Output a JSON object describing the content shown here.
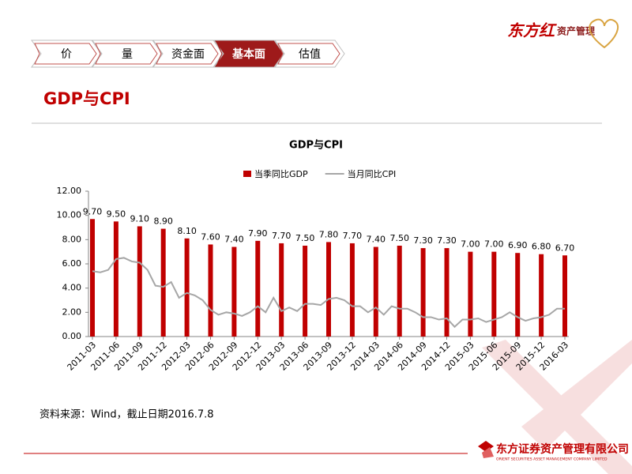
{
  "nav": {
    "tabs": [
      "价",
      "量",
      "资金面",
      "基本面",
      "估值"
    ],
    "active": 3
  },
  "logo": {
    "brand": "东方红",
    "name": "资产管理"
  },
  "header": {
    "title": "GDP与CPI"
  },
  "chart_data": {
    "type": "bar_line",
    "title": "GDP与CPI",
    "categories": [
      "2011-03",
      null,
      null,
      "2011-06",
      null,
      null,
      "2011-09",
      null,
      null,
      "2011-12",
      null,
      null,
      "2012-03",
      null,
      null,
      "2012-06",
      null,
      null,
      "2012-09",
      null,
      null,
      "2012-12",
      null,
      null,
      "2013-03",
      null,
      null,
      "2013-06",
      null,
      null,
      "2013-09",
      null,
      null,
      "2013-12",
      null,
      null,
      "2014-03",
      null,
      null,
      "2014-06",
      null,
      null,
      "2014-09",
      null,
      null,
      "2014-12",
      null,
      null,
      "2015-03",
      null,
      null,
      "2015-06",
      null,
      null,
      "2015-09",
      null,
      null,
      "2015-12",
      null,
      null,
      "2016-03"
    ],
    "series": [
      {
        "name": "当季同比GDP",
        "color": "#c00000",
        "type": "bar",
        "values": [
          9.7,
          null,
          null,
          9.5,
          null,
          null,
          9.1,
          null,
          null,
          8.9,
          null,
          null,
          8.1,
          null,
          null,
          7.6,
          null,
          null,
          7.4,
          null,
          null,
          7.9,
          null,
          null,
          7.7,
          null,
          null,
          7.5,
          null,
          null,
          7.8,
          null,
          null,
          7.7,
          null,
          null,
          7.4,
          null,
          null,
          7.5,
          null,
          null,
          7.3,
          null,
          null,
          7.3,
          null,
          null,
          7.0,
          null,
          null,
          7.0,
          null,
          null,
          6.9,
          null,
          null,
          6.8,
          null,
          null,
          6.7
        ],
        "value_labels": [
          "9.70",
          null,
          null,
          "9.50",
          null,
          null,
          "9.10",
          null,
          null,
          "8.90",
          null,
          null,
          "8.10",
          null,
          null,
          "7.60",
          null,
          null,
          "7.40",
          null,
          null,
          "7.90",
          null,
          null,
          "7.70",
          null,
          null,
          "7.50",
          null,
          null,
          "7.80",
          null,
          null,
          "7.70",
          null,
          null,
          "7.40",
          null,
          null,
          "7.50",
          null,
          null,
          "7.30",
          null,
          null,
          "7.30",
          null,
          null,
          "7.00",
          null,
          null,
          "7.00",
          null,
          null,
          "6.90",
          null,
          null,
          "6.80",
          null,
          null,
          "6.70"
        ]
      },
      {
        "name": "当月同比CPI",
        "color": "#a6a6a6",
        "type": "line",
        "values": [
          5.4,
          5.3,
          5.5,
          6.4,
          6.5,
          6.2,
          6.1,
          5.5,
          4.2,
          4.1,
          4.5,
          3.2,
          3.6,
          3.4,
          3.0,
          2.2,
          1.8,
          2.0,
          1.9,
          1.7,
          2.0,
          2.5,
          2.0,
          3.2,
          2.1,
          2.4,
          2.1,
          2.7,
          2.7,
          2.6,
          3.1,
          3.2,
          3.0,
          2.5,
          2.5,
          2.0,
          2.4,
          1.8,
          2.5,
          2.3,
          2.3,
          2.0,
          1.6,
          1.6,
          1.4,
          1.5,
          0.8,
          1.4,
          1.4,
          1.5,
          1.2,
          1.4,
          1.6,
          2.0,
          1.6,
          1.3,
          1.5,
          1.6,
          1.8,
          2.3,
          2.3
        ]
      }
    ],
    "ylim": [
      0,
      12
    ],
    "yticks": [
      {
        "value": 0,
        "label": "0.00"
      },
      {
        "value": 2,
        "label": "2.00"
      },
      {
        "value": 4,
        "label": "4.00"
      },
      {
        "value": 6,
        "label": "6.00"
      },
      {
        "value": 8,
        "label": "8.00"
      },
      {
        "value": 10,
        "label": "10.00"
      },
      {
        "value": 12,
        "label": "12.00"
      }
    ],
    "legend": "top"
  },
  "source": "资料来源：Wind，截止日期2016.7.8",
  "footer": {
    "company": "东方证券资产管理有限公司",
    "company_en": "ORIENT SECURITIES ASSET MANAGEMENT COMPANY LIMITED"
  }
}
